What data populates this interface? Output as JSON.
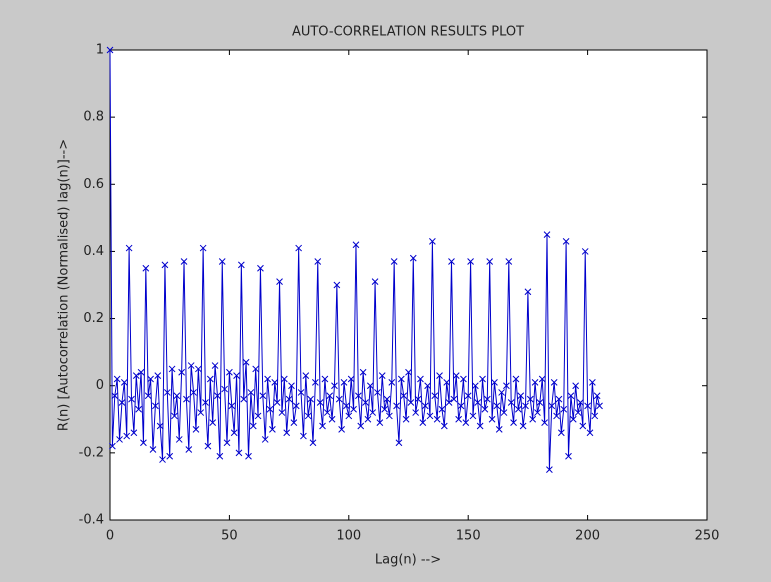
{
  "chart_data": {
    "type": "line",
    "title": "AUTO-CORRELATION RESULTS PLOT",
    "x_label": "Lag(n) -->",
    "y_label": "R(n) [Autocorrelation (Normalised) lag(n)]-->",
    "xlim": [
      0,
      250
    ],
    "xticks": [
      0,
      50,
      100,
      150,
      200,
      250
    ],
    "ylim": [
      -0.4,
      1
    ],
    "yticks": [
      -0.4,
      -0.2,
      0,
      0.2,
      0.4,
      0.6,
      0.8,
      1
    ],
    "grid": false,
    "series": [
      {
        "color": "#0000cc",
        "x": [
          0,
          1,
          2,
          3,
          4,
          5,
          6,
          7,
          8,
          9,
          10,
          11,
          12,
          13,
          14,
          15,
          16,
          17,
          18,
          19,
          20,
          21,
          22,
          23,
          24,
          25,
          26,
          27,
          28,
          29,
          30,
          31,
          32,
          33,
          34,
          35,
          36,
          37,
          38,
          39,
          40,
          41,
          42,
          43,
          44,
          45,
          46,
          47,
          48,
          49,
          50,
          51,
          52,
          53,
          54,
          55,
          56,
          57,
          58,
          59,
          60,
          61,
          62,
          63,
          64,
          65,
          66,
          67,
          68,
          69,
          70,
          71,
          72,
          73,
          74,
          75,
          76,
          77,
          78,
          79,
          80,
          81,
          82,
          83,
          84,
          85,
          86,
          87,
          88,
          89,
          90,
          91,
          92,
          93,
          94,
          95,
          96,
          97,
          98,
          99,
          100,
          101,
          102,
          103,
          104,
          105,
          106,
          107,
          108,
          109,
          110,
          111,
          112,
          113,
          114,
          115,
          116,
          117,
          118,
          119,
          120,
          121,
          122,
          123,
          124,
          125,
          126,
          127,
          128,
          129,
          130,
          131,
          132,
          133,
          134,
          135,
          136,
          137,
          138,
          139,
          140,
          141,
          142,
          143,
          144,
          145,
          146,
          147,
          148,
          149,
          150,
          151,
          152,
          153,
          154,
          155,
          156,
          157,
          158,
          159,
          160,
          161,
          162,
          163,
          164,
          165,
          166,
          167,
          168,
          169,
          170,
          171,
          172,
          173,
          174,
          175,
          176,
          177,
          178,
          179,
          180,
          181,
          182,
          183,
          184,
          185,
          186,
          187,
          188,
          189,
          190,
          191,
          192,
          193,
          194,
          195,
          196,
          197,
          198,
          199,
          200,
          201,
          202,
          203,
          204,
          205
        ],
        "values": [
          1,
          -0.18,
          -0.03,
          0.02,
          -0.16,
          -0.05,
          0.01,
          -0.15,
          0.41,
          -0.04,
          -0.14,
          0.03,
          -0.07,
          0.04,
          -0.17,
          0.35,
          -0.03,
          0.02,
          -0.19,
          -0.06,
          0.03,
          -0.12,
          -0.22,
          0.36,
          -0.02,
          -0.21,
          0.05,
          -0.09,
          -0.03,
          -0.16,
          0.04,
          0.37,
          -0.04,
          -0.19,
          0.06,
          -0.02,
          -0.13,
          0.05,
          -0.08,
          0.41,
          -0.05,
          -0.18,
          0.02,
          -0.11,
          0.06,
          -0.03,
          -0.21,
          0.37,
          -0.01,
          -0.17,
          0.04,
          -0.06,
          -0.14,
          0.03,
          -0.2,
          0.36,
          -0.04,
          0.07,
          -0.21,
          -0.02,
          -0.12,
          0.05,
          -0.09,
          0.35,
          -0.03,
          -0.16,
          0.02,
          -0.07,
          -0.13,
          0.01,
          -0.05,
          0.31,
          -0.08,
          0.02,
          -0.14,
          -0.04,
          0.0,
          -0.11,
          -0.06,
          0.41,
          -0.02,
          -0.15,
          0.03,
          -0.09,
          -0.04,
          -0.17,
          0.01,
          0.37,
          -0.05,
          -0.12,
          0.02,
          -0.08,
          -0.03,
          -0.1,
          0.0,
          0.3,
          -0.04,
          -0.13,
          0.01,
          -0.06,
          -0.09,
          0.02,
          -0.07,
          0.42,
          -0.03,
          -0.12,
          0.04,
          -0.05,
          -0.1,
          0.0,
          -0.08,
          0.31,
          -0.02,
          -0.11,
          0.03,
          -0.07,
          -0.04,
          -0.09,
          0.01,
          0.37,
          -0.06,
          -0.17,
          0.02,
          -0.03,
          -0.1,
          0.04,
          -0.05,
          0.38,
          -0.08,
          -0.04,
          0.02,
          -0.11,
          -0.06,
          0.0,
          -0.09,
          0.43,
          -0.03,
          -0.1,
          0.03,
          -0.07,
          -0.12,
          0.01,
          -0.05,
          0.37,
          -0.04,
          0.03,
          -0.1,
          -0.06,
          0.02,
          -0.11,
          -0.03,
          0.37,
          -0.09,
          0.0,
          -0.05,
          -0.12,
          0.02,
          -0.07,
          -0.04,
          0.37,
          -0.1,
          0.01,
          -0.06,
          -0.13,
          -0.02,
          -0.08,
          0.0,
          0.37,
          -0.05,
          -0.11,
          0.02,
          -0.07,
          -0.03,
          -0.12,
          -0.06,
          0.28,
          -0.04,
          -0.1,
          0.01,
          -0.08,
          -0.05,
          0.02,
          -0.11,
          0.45,
          -0.25,
          -0.06,
          0.01,
          -0.09,
          -0.04,
          -0.14,
          -0.07,
          0.43,
          -0.21,
          -0.03,
          -0.1,
          0.0,
          -0.08,
          -0.05,
          -0.12,
          0.4,
          -0.06,
          -0.14,
          0.01,
          -0.09,
          -0.03,
          -0.06
        ]
      }
    ]
  }
}
